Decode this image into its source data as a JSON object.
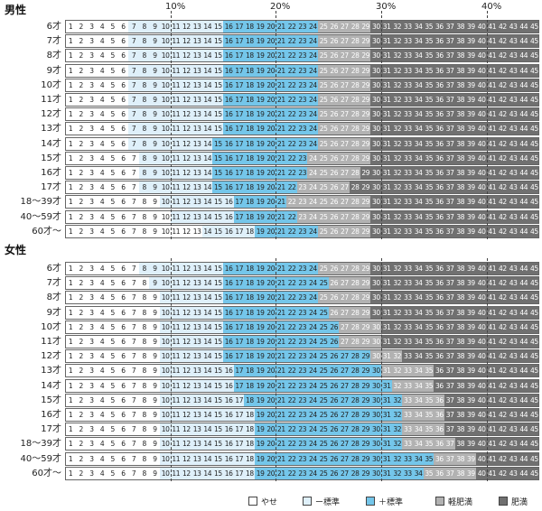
{
  "sections": [
    {
      "title": "男性",
      "rows": [
        {
          "label": "6才",
          "t1": 7,
          "t2": 16,
          "t3": 25,
          "t4": 30
        },
        {
          "label": "7才",
          "t1": 7,
          "t2": 16,
          "t3": 25,
          "t4": 30
        },
        {
          "label": "8才",
          "t1": 7,
          "t2": 16,
          "t3": 25,
          "t4": 30
        },
        {
          "label": "9才",
          "t1": 7,
          "t2": 16,
          "t3": 25,
          "t4": 30
        },
        {
          "label": "10才",
          "t1": 7,
          "t2": 16,
          "t3": 25,
          "t4": 30
        },
        {
          "label": "11才",
          "t1": 7,
          "t2": 16,
          "t3": 25,
          "t4": 30
        },
        {
          "label": "12才",
          "t1": 7,
          "t2": 16,
          "t3": 25,
          "t4": 30
        },
        {
          "label": "13才",
          "t1": 7,
          "t2": 16,
          "t3": 25,
          "t4": 30
        },
        {
          "label": "14才",
          "t1": 7,
          "t2": 15,
          "t3": 25,
          "t4": 30
        },
        {
          "label": "15才",
          "t1": 8,
          "t2": 15,
          "t3": 24,
          "t4": 30
        },
        {
          "label": "16才",
          "t1": 8,
          "t2": 15,
          "t3": 24,
          "t4": 29
        },
        {
          "label": "17才",
          "t1": 8,
          "t2": 15,
          "t3": 23,
          "t4": 28
        },
        {
          "label": "18～39才",
          "t1": 10,
          "t2": 17,
          "t3": 22,
          "t4": 30
        },
        {
          "label": "40～59才",
          "t1": 11,
          "t2": 17,
          "t3": 23,
          "t4": 30
        },
        {
          "label": "60才～",
          "t1": 14,
          "t2": 19,
          "t3": 25,
          "t4": 30
        }
      ]
    },
    {
      "title": "女性",
      "rows": [
        {
          "label": "6才",
          "t1": 8,
          "t2": 16,
          "t3": 25,
          "t4": 30
        },
        {
          "label": "7才",
          "t1": 9,
          "t2": 16,
          "t3": 26,
          "t4": 30
        },
        {
          "label": "8才",
          "t1": 10,
          "t2": 16,
          "t3": 25,
          "t4": 30
        },
        {
          "label": "9才",
          "t1": 10,
          "t2": 16,
          "t3": 26,
          "t4": 30
        },
        {
          "label": "10才",
          "t1": 10,
          "t2": 16,
          "t3": 27,
          "t4": 31
        },
        {
          "label": "11才",
          "t1": 10,
          "t2": 16,
          "t3": 27,
          "t4": 31
        },
        {
          "label": "12才",
          "t1": 10,
          "t2": 16,
          "t3": 30,
          "t4": 33
        },
        {
          "label": "13才",
          "t1": 10,
          "t2": 17,
          "t3": 31,
          "t4": 36
        },
        {
          "label": "14才",
          "t1": 10,
          "t2": 17,
          "t3": 32,
          "t4": 36
        },
        {
          "label": "15才",
          "t1": 10,
          "t2": 18,
          "t3": 33,
          "t4": 37
        },
        {
          "label": "16才",
          "t1": 10,
          "t2": 19,
          "t3": 33,
          "t4": 37
        },
        {
          "label": "17才",
          "t1": 10,
          "t2": 19,
          "t3": 33,
          "t4": 37
        },
        {
          "label": "18～39才",
          "t1": 10,
          "t2": 19,
          "t3": 33,
          "t4": 38
        },
        {
          "label": "40～59才",
          "t1": 10,
          "t2": 19,
          "t3": 36,
          "t4": 40
        },
        {
          "label": "60才～",
          "t1": 10,
          "t2": 19,
          "t3": 35,
          "t4": 40
        }
      ]
    }
  ],
  "ticks": [
    {
      "label": "10%",
      "after": 10
    },
    {
      "label": "20%",
      "after": 20
    },
    {
      "label": "30%",
      "after": 30
    },
    {
      "label": "40%",
      "after": 40
    }
  ],
  "legend": [
    {
      "label": "やせ",
      "color": "#ffffff"
    },
    {
      "label": "ー標準",
      "color": "#dff0fa"
    },
    {
      "label": "＋標準",
      "color": "#74c6ea"
    },
    {
      "label": "軽肥満",
      "color": "#b2b2b2"
    },
    {
      "label": "肥満",
      "color": "#707070"
    }
  ],
  "chart_data": {
    "type": "table",
    "columns": [
      1,
      2,
      3,
      4,
      5,
      6,
      7,
      8,
      9,
      10,
      11,
      12,
      13,
      14,
      15,
      16,
      17,
      18,
      19,
      20,
      21,
      22,
      23,
      24,
      25,
      26,
      27,
      28,
      29,
      30,
      31,
      32,
      33,
      34,
      35,
      36,
      37,
      38,
      39,
      40,
      41,
      42,
      43,
      44,
      45
    ],
    "tick_labels": [
      "10%",
      "20%",
      "30%",
      "40%"
    ],
    "categories": [
      "やせ",
      "ー標準",
      "＋標準",
      "軽肥満",
      "肥満"
    ],
    "grid": true,
    "legend_position": "bottom"
  }
}
